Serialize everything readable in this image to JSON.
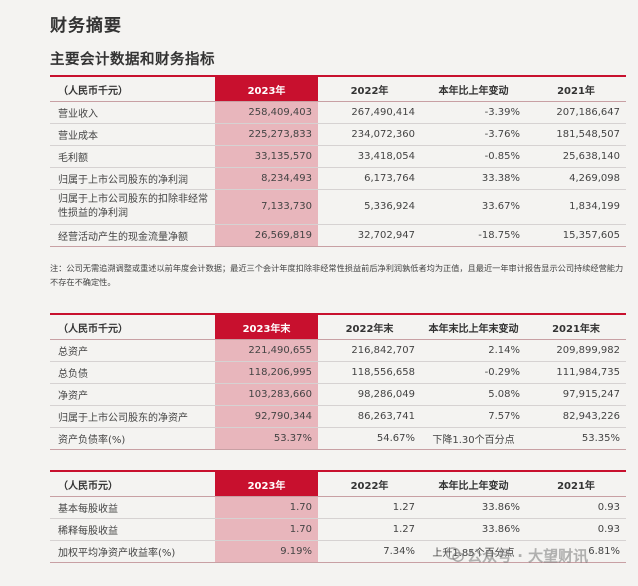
{
  "page": {
    "title": "财务摘要",
    "section_title": "主要会计数据和财务指标",
    "note": "注：公司无需追溯调整或重述以前年度会计数据；最近三个会计年度扣除非经常性损益前后净利润孰低者均为正值，且最近一年审计报告显示公司持续经营能力不存在不确定性。",
    "watermark": "公众号 · 大望财讯"
  },
  "table1": {
    "headers": [
      "（人民币千元）",
      "2023年",
      "2022年",
      "本年比上年变动",
      "2021年"
    ],
    "rows": [
      [
        "营业收入",
        "258,409,403",
        "267,490,414",
        "-3.39%",
        "207,186,647"
      ],
      [
        "营业成本",
        "225,273,833",
        "234,072,360",
        "-3.76%",
        "181,548,507"
      ],
      [
        "毛利额",
        "33,135,570",
        "33,418,054",
        "-0.85%",
        "25,638,140"
      ],
      [
        "归属于上市公司股东的净利润",
        "8,234,493",
        "6,173,764",
        "33.38%",
        "4,269,098"
      ],
      [
        "归属于上市公司股东的扣除非经常性损益的净利润",
        "7,133,730",
        "5,336,924",
        "33.67%",
        "1,834,199"
      ],
      [
        "经营活动产生的现金流量净额",
        "26,569,819",
        "32,702,947",
        "-18.75%",
        "15,357,605"
      ]
    ]
  },
  "table2": {
    "headers": [
      "（人民币千元）",
      "2023年末",
      "2022年末",
      "本年末比上年末变动",
      "2021年末"
    ],
    "rows": [
      [
        "总资产",
        "221,490,655",
        "216,842,707",
        "2.14%",
        "209,899,982"
      ],
      [
        "总负债",
        "118,206,995",
        "118,556,658",
        "-0.29%",
        "111,984,735"
      ],
      [
        "净资产",
        "103,283,660",
        "98,286,049",
        "5.08%",
        "97,915,247"
      ],
      [
        "归属于上市公司股东的净资产",
        "92,790,344",
        "86,263,741",
        "7.57%",
        "82,943,226"
      ],
      [
        "资产负债率(%)",
        "53.37%",
        "54.67%",
        "下降1.30个百分点",
        "53.35%"
      ]
    ]
  },
  "table3": {
    "headers": [
      "（人民币元）",
      "2023年",
      "2022年",
      "本年比上年变动",
      "2021年"
    ],
    "rows": [
      [
        "基本每股收益",
        "1.70",
        "1.27",
        "33.86%",
        "0.93"
      ],
      [
        "稀释每股收益",
        "1.70",
        "1.27",
        "33.86%",
        "0.93"
      ],
      [
        "加权平均净资产收益率(%)",
        "9.19%",
        "7.34%",
        "上升1.85个百分点",
        "6.81%"
      ]
    ]
  }
}
